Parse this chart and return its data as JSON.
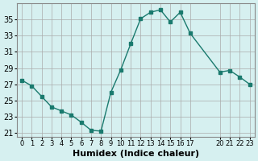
{
  "xlabel": "Humidex (Indice chaleur)",
  "ylabel": "",
  "background_color": "#d6f0f0",
  "line_color": "#1a7a6e",
  "marker_color": "#1a7a6e",
  "grid_color": "#aaaaaa",
  "x_values": [
    0,
    1,
    2,
    3,
    4,
    5,
    6,
    7,
    8,
    9,
    10,
    11,
    12,
    13,
    14,
    15,
    16,
    17,
    20,
    21,
    22,
    23
  ],
  "y_values": [
    27.5,
    26.8,
    25.5,
    24.2,
    23.7,
    23.2,
    22.3,
    21.3,
    21.2,
    26.0,
    28.8,
    32.0,
    35.1,
    35.9,
    36.2,
    34.7,
    35.9,
    33.3,
    28.5,
    28.7,
    27.9,
    27.0
  ],
  "yticks": [
    21,
    23,
    25,
    27,
    29,
    31,
    33,
    35
  ],
  "xtick_positions": [
    0,
    1,
    2,
    3,
    4,
    5,
    6,
    7,
    8,
    9,
    10,
    11,
    12,
    13,
    14,
    15,
    16,
    17,
    20,
    21,
    22,
    23
  ],
  "xtick_labels": [
    "0",
    "1",
    "2",
    "3",
    "4",
    "5",
    "6",
    "7",
    "8",
    "9",
    "10",
    "11",
    "12",
    "13",
    "14",
    "15",
    "16",
    "17",
    "20",
    "21",
    "22",
    "23"
  ],
  "xlim": [
    -0.5,
    23.5
  ],
  "ylim": [
    20.5,
    37.0
  ],
  "fontsize_ticks": 7,
  "fontsize_xticks": 6,
  "fontsize_xlabel": 8
}
